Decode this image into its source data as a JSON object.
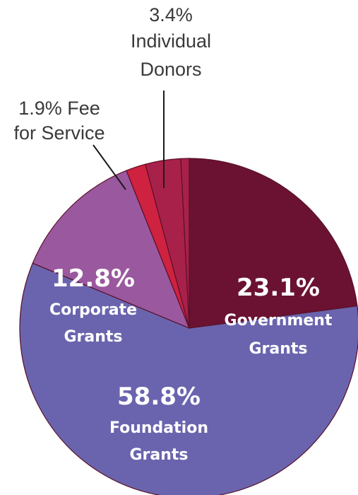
{
  "chart_data": {
    "type": "pie",
    "title": "",
    "legend": "none",
    "slices": [
      {
        "label_lines": [
          "23.1%",
          "Government",
          "Grants"
        ],
        "name": "Government Grants",
        "value": 23.1,
        "color": "#6b1232",
        "label_style": "inside"
      },
      {
        "label_lines": [
          "58.8%",
          "Foundation",
          "Grants"
        ],
        "name": "Foundation Grants",
        "value": 58.8,
        "color": "#6a64ae",
        "label_style": "inside"
      },
      {
        "label_lines": [
          "12.8%",
          "Corporate",
          "Grants"
        ],
        "name": "Corporate Grants",
        "value": 12.8,
        "color": "#9a589e",
        "label_style": "inside"
      },
      {
        "label_lines": [
          "1.9% Fee",
          "for Service"
        ],
        "name": "Fee for Service",
        "value": 1.9,
        "color": "#cf2240",
        "label_style": "outside"
      },
      {
        "label_lines": [
          "3.4%",
          "Individual",
          "Donors"
        ],
        "name": "Individual Donors",
        "value": 3.4,
        "color": "#a8214a",
        "label_style": "outside"
      },
      {
        "label_lines": [],
        "name": "",
        "value": 0.8,
        "color": "#a8214a",
        "label_style": "none"
      }
    ]
  }
}
